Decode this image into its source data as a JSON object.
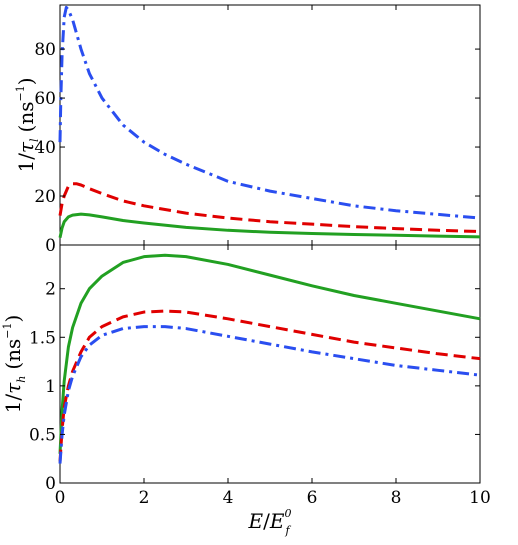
{
  "chart_data": [
    {
      "type": "line",
      "panel": "top",
      "ylabel": {
        "prefix": "1/",
        "symbol": "τ",
        "sub": "l",
        "units": "(ns",
        "units_sup": "−1",
        "units_close": ")"
      },
      "xlim": [
        0,
        10
      ],
      "ylim": [
        0,
        98
      ],
      "yticks": [
        0,
        20,
        40,
        60,
        80
      ],
      "ytick_labels": [
        "0",
        "20",
        "40",
        "60",
        "80"
      ],
      "series": [
        {
          "color": "#2a4ef0",
          "style": "dashdot",
          "x": [
            0,
            0.02,
            0.05,
            0.1,
            0.15,
            0.2,
            0.3,
            0.4,
            0.5,
            0.7,
            1,
            1.5,
            2,
            2.5,
            3,
            4,
            5,
            6,
            7,
            8,
            9,
            10
          ],
          "y": [
            42,
            60,
            78,
            93,
            97,
            96,
            92,
            86,
            80,
            70,
            60,
            49,
            42,
            37,
            33,
            26,
            22,
            19,
            16,
            14,
            12.5,
            11
          ]
        },
        {
          "color": "#e00000",
          "style": "dashed",
          "x": [
            0,
            0.05,
            0.1,
            0.2,
            0.3,
            0.4,
            0.5,
            0.7,
            1,
            1.5,
            2,
            3,
            4,
            5,
            6,
            7,
            8,
            9,
            10
          ],
          "y": [
            12,
            17,
            20,
            24,
            25,
            25,
            24.5,
            23,
            21,
            18,
            16,
            13,
            11,
            9.5,
            8.5,
            7.5,
            6.7,
            6,
            5.5
          ]
        },
        {
          "color": "#22a022",
          "style": "solid",
          "x": [
            0,
            0.05,
            0.1,
            0.2,
            0.3,
            0.5,
            0.7,
            1,
            1.5,
            2,
            3,
            4,
            5,
            6,
            7,
            8,
            9,
            10
          ],
          "y": [
            3,
            7,
            9.5,
            11.5,
            12.2,
            12.6,
            12.3,
            11.5,
            10,
            9,
            7.2,
            6,
            5.2,
            4.7,
            4.3,
            4,
            3.6,
            3.3
          ]
        }
      ]
    },
    {
      "type": "line",
      "panel": "bottom",
      "xlabel": {
        "symbol": "E",
        "slash": "/",
        "symbol2": "E",
        "sub": "f",
        "sup": "0"
      },
      "ylabel": {
        "prefix": "1/",
        "symbol": "τ",
        "sub": "h",
        "units": "(ns",
        "units_sup": "−1",
        "units_close": ")"
      },
      "xlim": [
        0,
        10
      ],
      "ylim": [
        0,
        2.45
      ],
      "xticks": [
        0,
        2,
        4,
        6,
        8,
        10
      ],
      "xtick_labels": [
        "0",
        "2",
        "4",
        "6",
        "8",
        "10"
      ],
      "yticks": [
        0,
        0.5,
        1,
        1.5,
        2
      ],
      "ytick_labels": [
        "0",
        "0.5",
        "1",
        "1.5",
        "2"
      ],
      "series": [
        {
          "color": "#22a022",
          "style": "solid",
          "x": [
            0,
            0.05,
            0.1,
            0.2,
            0.3,
            0.5,
            0.7,
            1,
            1.5,
            2,
            2.5,
            3,
            4,
            5,
            6,
            7,
            8,
            9,
            10
          ],
          "y": [
            0.3,
            0.75,
            1.05,
            1.4,
            1.6,
            1.85,
            2.0,
            2.13,
            2.27,
            2.33,
            2.345,
            2.33,
            2.25,
            2.14,
            2.03,
            1.93,
            1.85,
            1.77,
            1.69
          ]
        },
        {
          "color": "#e00000",
          "style": "dashed",
          "x": [
            0,
            0.05,
            0.1,
            0.2,
            0.3,
            0.5,
            0.7,
            1,
            1.5,
            2,
            2.5,
            3,
            4,
            5,
            6,
            7,
            8,
            9,
            10
          ],
          "y": [
            0.22,
            0.55,
            0.78,
            1.0,
            1.15,
            1.35,
            1.5,
            1.61,
            1.71,
            1.76,
            1.77,
            1.76,
            1.69,
            1.61,
            1.53,
            1.45,
            1.39,
            1.33,
            1.28
          ]
        },
        {
          "color": "#2a4ef0",
          "style": "dashdot",
          "x": [
            0,
            0.05,
            0.1,
            0.2,
            0.3,
            0.5,
            0.7,
            1,
            1.5,
            2,
            2.5,
            3,
            4,
            5,
            6,
            7,
            8,
            9,
            10
          ],
          "y": [
            0.2,
            0.5,
            0.7,
            0.95,
            1.1,
            1.3,
            1.42,
            1.52,
            1.59,
            1.61,
            1.61,
            1.59,
            1.51,
            1.43,
            1.35,
            1.28,
            1.21,
            1.16,
            1.11
          ]
        }
      ]
    }
  ]
}
